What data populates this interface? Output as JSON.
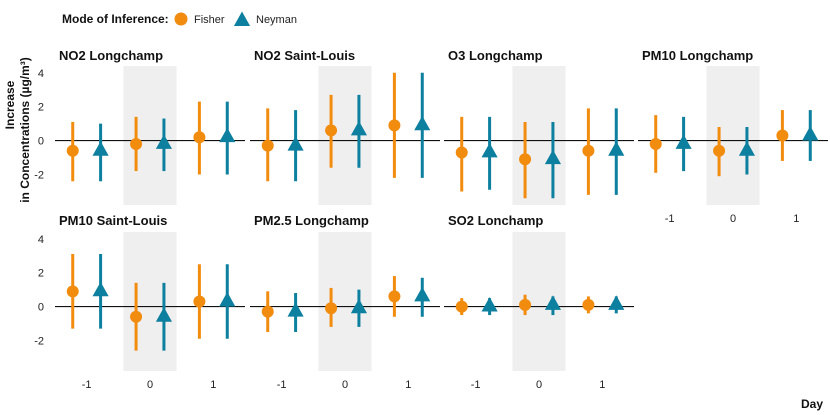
{
  "chart_data": {
    "type": "scatter",
    "subtype": "point-range facets",
    "legend": {
      "title": "Mode of Inference:",
      "placement": "top-left",
      "entries": [
        {
          "name": "Fisher",
          "color": "#f28c0f",
          "shape": "circle"
        },
        {
          "name": "Neyman",
          "color": "#0d7f9f",
          "shape": "triangle"
        }
      ]
    },
    "ylabel_line1": "Increase",
    "ylabel_line2": "in Concentrations (µg/m³)",
    "xlabel": "Day",
    "x_ticks": [
      "-1",
      "0",
      "1"
    ],
    "y_ticks": [
      "4",
      "2",
      "0",
      "-2"
    ],
    "ylim": [
      -3.8,
      4.4
    ],
    "highlight_day": 0,
    "grid": false,
    "panels": [
      {
        "title": "NO2 Longchamp",
        "points": [
          {
            "day": -1,
            "method": "Fisher",
            "est": -0.6,
            "low": -2.4,
            "high": 1.1
          },
          {
            "day": -1,
            "method": "Neyman",
            "est": -0.6,
            "low": -2.4,
            "high": 1.0
          },
          {
            "day": 0,
            "method": "Fisher",
            "est": -0.2,
            "low": -1.8,
            "high": 1.4
          },
          {
            "day": 0,
            "method": "Neyman",
            "est": -0.2,
            "low": -1.8,
            "high": 1.3
          },
          {
            "day": 1,
            "method": "Fisher",
            "est": 0.2,
            "low": -2.0,
            "high": 2.3
          },
          {
            "day": 1,
            "method": "Neyman",
            "est": 0.2,
            "low": -2.0,
            "high": 2.3
          }
        ]
      },
      {
        "title": "NO2 Saint-Louis",
        "points": [
          {
            "day": -1,
            "method": "Fisher",
            "est": -0.3,
            "low": -2.4,
            "high": 1.9
          },
          {
            "day": -1,
            "method": "Neyman",
            "est": -0.3,
            "low": -2.4,
            "high": 1.8
          },
          {
            "day": 0,
            "method": "Fisher",
            "est": 0.6,
            "low": -1.6,
            "high": 2.7
          },
          {
            "day": 0,
            "method": "Neyman",
            "est": 0.6,
            "low": -1.6,
            "high": 2.7
          },
          {
            "day": 1,
            "method": "Fisher",
            "est": 0.9,
            "low": -2.2,
            "high": 4.0
          },
          {
            "day": 1,
            "method": "Neyman",
            "est": 0.9,
            "low": -2.2,
            "high": 4.0
          }
        ]
      },
      {
        "title": "O3 Longchamp",
        "points": [
          {
            "day": -1,
            "method": "Fisher",
            "est": -0.7,
            "low": -3.0,
            "high": 1.4
          },
          {
            "day": -1,
            "method": "Neyman",
            "est": -0.7,
            "low": -2.9,
            "high": 1.4
          },
          {
            "day": 0,
            "method": "Fisher",
            "est": -1.1,
            "low": -3.4,
            "high": 1.1
          },
          {
            "day": 0,
            "method": "Neyman",
            "est": -1.1,
            "low": -3.4,
            "high": 1.1
          },
          {
            "day": 1,
            "method": "Fisher",
            "est": -0.6,
            "low": -3.2,
            "high": 1.9
          },
          {
            "day": 1,
            "method": "Neyman",
            "est": -0.6,
            "low": -3.2,
            "high": 1.9
          }
        ]
      },
      {
        "title": "PM10 Longchamp",
        "points": [
          {
            "day": -1,
            "method": "Fisher",
            "est": -0.2,
            "low": -1.9,
            "high": 1.5
          },
          {
            "day": -1,
            "method": "Neyman",
            "est": -0.2,
            "low": -1.8,
            "high": 1.4
          },
          {
            "day": 0,
            "method": "Fisher",
            "est": -0.6,
            "low": -2.1,
            "high": 0.8
          },
          {
            "day": 0,
            "method": "Neyman",
            "est": -0.6,
            "low": -2.0,
            "high": 0.8
          },
          {
            "day": 1,
            "method": "Fisher",
            "est": 0.3,
            "low": -1.2,
            "high": 1.8
          },
          {
            "day": 1,
            "method": "Neyman",
            "est": 0.3,
            "low": -1.2,
            "high": 1.8
          }
        ]
      },
      {
        "title": "PM10 Saint-Louis",
        "points": [
          {
            "day": -1,
            "method": "Fisher",
            "est": 0.9,
            "low": -1.3,
            "high": 3.1
          },
          {
            "day": -1,
            "method": "Neyman",
            "est": 0.9,
            "low": -1.3,
            "high": 3.1
          },
          {
            "day": 0,
            "method": "Fisher",
            "est": -0.6,
            "low": -2.6,
            "high": 1.4
          },
          {
            "day": 0,
            "method": "Neyman",
            "est": -0.6,
            "low": -2.6,
            "high": 1.4
          },
          {
            "day": 1,
            "method": "Fisher",
            "est": 0.3,
            "low": -1.9,
            "high": 2.5
          },
          {
            "day": 1,
            "method": "Neyman",
            "est": 0.3,
            "low": -1.9,
            "high": 2.5
          }
        ]
      },
      {
        "title": "PM2.5 Longchamp",
        "points": [
          {
            "day": -1,
            "method": "Fisher",
            "est": -0.3,
            "low": -1.5,
            "high": 0.9
          },
          {
            "day": -1,
            "method": "Neyman",
            "est": -0.3,
            "low": -1.5,
            "high": 0.8
          },
          {
            "day": 0,
            "method": "Fisher",
            "est": -0.1,
            "low": -1.2,
            "high": 1.1
          },
          {
            "day": 0,
            "method": "Neyman",
            "est": -0.1,
            "low": -1.2,
            "high": 1.0
          },
          {
            "day": 1,
            "method": "Fisher",
            "est": 0.6,
            "low": -0.6,
            "high": 1.8
          },
          {
            "day": 1,
            "method": "Neyman",
            "est": 0.6,
            "low": -0.6,
            "high": 1.7
          }
        ]
      },
      {
        "title": "SO2 Lonchamp",
        "points": [
          {
            "day": -1,
            "method": "Fisher",
            "est": 0.0,
            "low": -0.5,
            "high": 0.5
          },
          {
            "day": -1,
            "method": "Neyman",
            "est": 0.0,
            "low": -0.5,
            "high": 0.5
          },
          {
            "day": 0,
            "method": "Fisher",
            "est": 0.1,
            "low": -0.5,
            "high": 0.7
          },
          {
            "day": 0,
            "method": "Neyman",
            "est": 0.1,
            "low": -0.5,
            "high": 0.6
          },
          {
            "day": 1,
            "method": "Fisher",
            "est": 0.1,
            "low": -0.4,
            "high": 0.6
          },
          {
            "day": 1,
            "method": "Neyman",
            "est": 0.1,
            "low": -0.4,
            "high": 0.6
          }
        ]
      }
    ]
  }
}
